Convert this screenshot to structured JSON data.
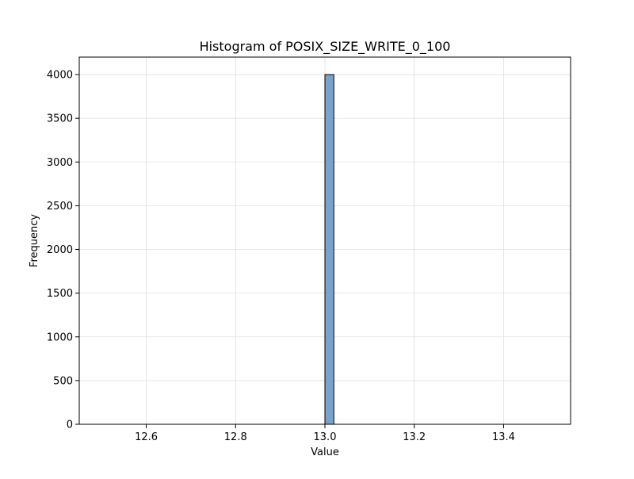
{
  "chart_data": {
    "type": "bar",
    "title": "Histogram of POSIX_SIZE_WRITE_0_100",
    "xlabel": "Value",
    "ylabel": "Frequency",
    "xlim": [
      12.45,
      13.55
    ],
    "ylim": [
      0,
      4200
    ],
    "x_ticks": [
      12.6,
      12.8,
      13.0,
      13.2,
      13.4
    ],
    "x_tick_labels": [
      "12.6",
      "12.8",
      "13.0",
      "13.2",
      "13.4"
    ],
    "y_ticks": [
      0,
      500,
      1000,
      1500,
      2000,
      2500,
      3000,
      3500,
      4000
    ],
    "y_tick_labels": [
      "0",
      "500",
      "1000",
      "1500",
      "2000",
      "2500",
      "3000",
      "3500",
      "4000"
    ],
    "bins": [
      {
        "x_start": 13.0,
        "x_end": 13.02,
        "count": 4000
      }
    ],
    "grid": true,
    "colors": {
      "bar_fill": "#7ba3c9",
      "bar_edge": "#000000"
    }
  }
}
